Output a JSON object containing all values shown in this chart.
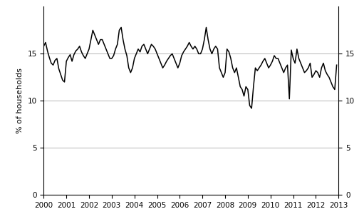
{
  "title": "",
  "ylabel_left": "% of households",
  "ylabel_right": "",
  "xlim": [
    2000.0,
    2013.0
  ],
  "ylim": [
    0,
    20
  ],
  "yticks": [
    0,
    5,
    10,
    15
  ],
  "line_color": "#000000",
  "background_color": "#ffffff",
  "grid_color": "#aaaaaa",
  "xtick_labels": [
    "2000",
    "2001",
    "2002",
    "2003",
    "2004",
    "2005",
    "2006",
    "2007",
    "2008",
    "2009",
    "2010",
    "2011",
    "2012",
    "2013"
  ],
  "line_width": 1.1,
  "data": [
    [
      2000.0,
      15.8
    ],
    [
      2000.083,
      16.2
    ],
    [
      2000.167,
      15.3
    ],
    [
      2000.25,
      14.6
    ],
    [
      2000.333,
      14.0
    ],
    [
      2000.417,
      13.8
    ],
    [
      2000.5,
      14.3
    ],
    [
      2000.583,
      14.5
    ],
    [
      2000.667,
      13.4
    ],
    [
      2000.75,
      12.8
    ],
    [
      2000.833,
      12.2
    ],
    [
      2000.917,
      12.0
    ],
    [
      2001.0,
      14.2
    ],
    [
      2001.083,
      14.6
    ],
    [
      2001.167,
      14.9
    ],
    [
      2001.25,
      14.2
    ],
    [
      2001.333,
      14.9
    ],
    [
      2001.417,
      15.3
    ],
    [
      2001.5,
      15.5
    ],
    [
      2001.583,
      15.8
    ],
    [
      2001.667,
      15.2
    ],
    [
      2001.75,
      14.8
    ],
    [
      2001.833,
      14.5
    ],
    [
      2001.917,
      15.0
    ],
    [
      2002.0,
      15.5
    ],
    [
      2002.083,
      16.5
    ],
    [
      2002.167,
      17.5
    ],
    [
      2002.25,
      17.0
    ],
    [
      2002.333,
      16.5
    ],
    [
      2002.417,
      16.0
    ],
    [
      2002.5,
      16.5
    ],
    [
      2002.583,
      16.5
    ],
    [
      2002.667,
      16.0
    ],
    [
      2002.75,
      15.5
    ],
    [
      2002.833,
      15.0
    ],
    [
      2002.917,
      14.5
    ],
    [
      2003.0,
      14.5
    ],
    [
      2003.083,
      14.8
    ],
    [
      2003.167,
      15.5
    ],
    [
      2003.25,
      16.0
    ],
    [
      2003.333,
      17.5
    ],
    [
      2003.417,
      17.8
    ],
    [
      2003.5,
      16.5
    ],
    [
      2003.583,
      15.5
    ],
    [
      2003.667,
      14.8
    ],
    [
      2003.75,
      13.5
    ],
    [
      2003.833,
      13.0
    ],
    [
      2003.917,
      13.5
    ],
    [
      2004.0,
      14.5
    ],
    [
      2004.083,
      15.0
    ],
    [
      2004.167,
      15.5
    ],
    [
      2004.25,
      15.2
    ],
    [
      2004.333,
      15.8
    ],
    [
      2004.417,
      16.0
    ],
    [
      2004.5,
      15.5
    ],
    [
      2004.583,
      15.0
    ],
    [
      2004.667,
      15.5
    ],
    [
      2004.75,
      16.0
    ],
    [
      2004.833,
      15.8
    ],
    [
      2004.917,
      15.5
    ],
    [
      2005.0,
      15.0
    ],
    [
      2005.083,
      14.5
    ],
    [
      2005.167,
      14.0
    ],
    [
      2005.25,
      13.5
    ],
    [
      2005.333,
      13.8
    ],
    [
      2005.417,
      14.2
    ],
    [
      2005.5,
      14.5
    ],
    [
      2005.583,
      14.8
    ],
    [
      2005.667,
      15.0
    ],
    [
      2005.75,
      14.5
    ],
    [
      2005.833,
      14.0
    ],
    [
      2005.917,
      13.5
    ],
    [
      2006.0,
      14.0
    ],
    [
      2006.083,
      14.8
    ],
    [
      2006.167,
      15.2
    ],
    [
      2006.25,
      15.5
    ],
    [
      2006.333,
      15.8
    ],
    [
      2006.417,
      16.2
    ],
    [
      2006.5,
      15.8
    ],
    [
      2006.583,
      15.5
    ],
    [
      2006.667,
      15.8
    ],
    [
      2006.75,
      15.5
    ],
    [
      2006.833,
      15.0
    ],
    [
      2006.917,
      15.0
    ],
    [
      2007.0,
      15.5
    ],
    [
      2007.083,
      16.5
    ],
    [
      2007.167,
      17.8
    ],
    [
      2007.25,
      16.5
    ],
    [
      2007.333,
      15.5
    ],
    [
      2007.417,
      15.0
    ],
    [
      2007.5,
      15.5
    ],
    [
      2007.583,
      15.8
    ],
    [
      2007.667,
      15.5
    ],
    [
      2007.75,
      13.5
    ],
    [
      2007.833,
      13.0
    ],
    [
      2007.917,
      12.5
    ],
    [
      2008.0,
      13.0
    ],
    [
      2008.083,
      15.5
    ],
    [
      2008.167,
      15.2
    ],
    [
      2008.25,
      14.5
    ],
    [
      2008.333,
      13.5
    ],
    [
      2008.417,
      13.0
    ],
    [
      2008.5,
      13.5
    ],
    [
      2008.583,
      12.5
    ],
    [
      2008.667,
      11.5
    ],
    [
      2008.75,
      11.2
    ],
    [
      2008.833,
      10.5
    ],
    [
      2008.917,
      11.5
    ],
    [
      2009.0,
      11.2
    ],
    [
      2009.083,
      9.5
    ],
    [
      2009.167,
      9.2
    ],
    [
      2009.25,
      11.5
    ],
    [
      2009.333,
      13.5
    ],
    [
      2009.417,
      13.2
    ],
    [
      2009.5,
      13.5
    ],
    [
      2009.583,
      13.8
    ],
    [
      2009.667,
      14.2
    ],
    [
      2009.75,
      14.5
    ],
    [
      2009.833,
      14.0
    ],
    [
      2009.917,
      13.5
    ],
    [
      2010.0,
      13.8
    ],
    [
      2010.083,
      14.2
    ],
    [
      2010.167,
      14.8
    ],
    [
      2010.25,
      14.5
    ],
    [
      2010.333,
      14.5
    ],
    [
      2010.417,
      14.0
    ],
    [
      2010.5,
      13.5
    ],
    [
      2010.583,
      13.0
    ],
    [
      2010.667,
      13.5
    ],
    [
      2010.75,
      13.8
    ],
    [
      2010.833,
      10.2
    ],
    [
      2010.917,
      15.4
    ],
    [
      2011.0,
      14.5
    ],
    [
      2011.083,
      14.0
    ],
    [
      2011.167,
      15.5
    ],
    [
      2011.25,
      14.5
    ],
    [
      2011.333,
      14.0
    ],
    [
      2011.417,
      13.5
    ],
    [
      2011.5,
      13.0
    ],
    [
      2011.583,
      13.2
    ],
    [
      2011.667,
      13.5
    ],
    [
      2011.75,
      14.0
    ],
    [
      2011.833,
      12.5
    ],
    [
      2011.917,
      12.8
    ],
    [
      2012.0,
      13.2
    ],
    [
      2012.083,
      13.0
    ],
    [
      2012.167,
      12.5
    ],
    [
      2012.25,
      13.5
    ],
    [
      2012.333,
      14.0
    ],
    [
      2012.417,
      13.2
    ],
    [
      2012.5,
      12.8
    ],
    [
      2012.583,
      12.5
    ],
    [
      2012.667,
      12.0
    ],
    [
      2012.75,
      11.5
    ],
    [
      2012.833,
      11.2
    ],
    [
      2012.917,
      13.8
    ]
  ]
}
